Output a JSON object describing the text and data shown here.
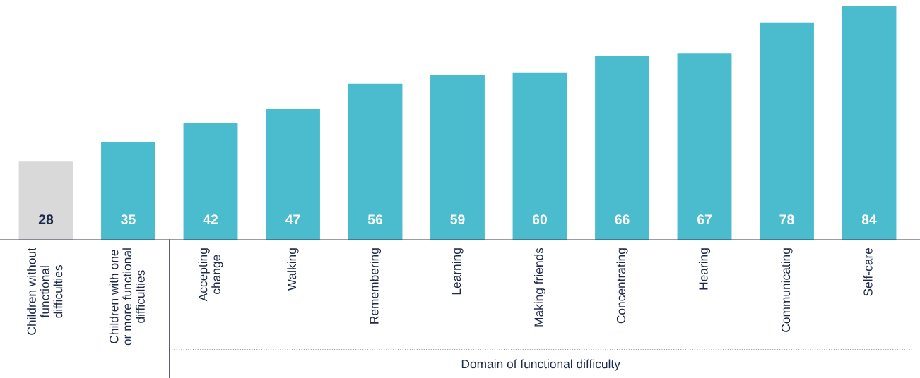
{
  "chart_data": {
    "type": "bar",
    "xlabel": "Domain of functional difficulty",
    "categories": [
      "Children without\nfunctional\ndifficulties",
      "Children with one\nor more functional\ndifficulties",
      "Accepting\nchange",
      "Walking",
      "Remembering",
      "Learning",
      "Making friends",
      "Concentrating",
      "Hearing",
      "Communicating",
      "Self-care"
    ],
    "values": [
      28,
      35,
      42,
      47,
      56,
      59,
      60,
      66,
      67,
      78,
      84
    ],
    "colors": [
      "#d9d9d9",
      "#4bbccd",
      "#4bbccd",
      "#4bbccd",
      "#4bbccd",
      "#4bbccd",
      "#4bbccd",
      "#4bbccd",
      "#4bbccd",
      "#4bbccd",
      "#4bbccd"
    ],
    "data_labels": true,
    "grid": false
  }
}
